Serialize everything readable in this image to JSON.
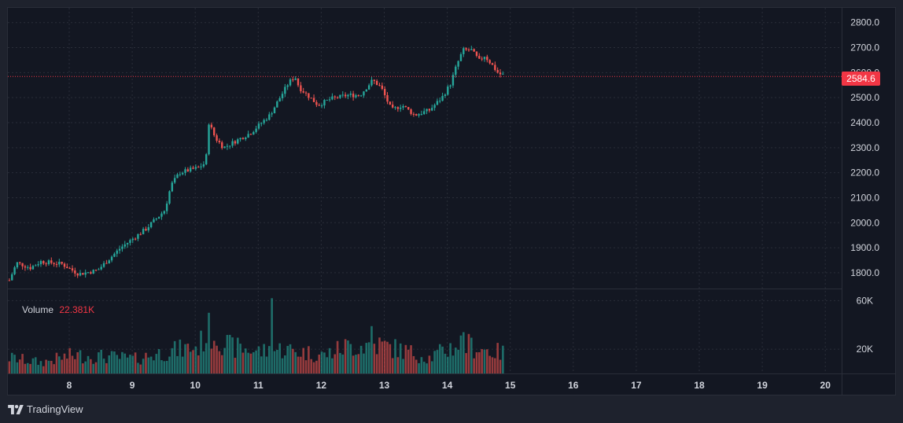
{
  "brand": {
    "name": "TradingView",
    "icon": "tradingview-logo-icon"
  },
  "volume_legend": {
    "label": "Volume",
    "value": "22.381K"
  },
  "last_price": {
    "label": "2584.6",
    "value": 2584.6,
    "color": "#f23645"
  },
  "colors": {
    "up": "#26a69a",
    "down": "#ef5350",
    "background": "#131722",
    "frame": "#1e222d"
  },
  "chart_data": {
    "type": "candlestick",
    "price_axis": {
      "ticks": [
        "1800.0",
        "1900.0",
        "2000.0",
        "2100.0",
        "2200.0",
        "2300.0",
        "2400.0",
        "2500.0",
        "2600.0",
        "2700.0",
        "2800.0"
      ],
      "range": [
        1740,
        2840
      ]
    },
    "volume_axis": {
      "ticks": [
        "20K",
        "60K"
      ],
      "range": [
        0,
        68000
      ]
    },
    "x_axis": {
      "labels": [
        "8",
        "9",
        "10",
        "11",
        "12",
        "13",
        "14",
        "15",
        "16",
        "17",
        "18",
        "19",
        "20"
      ]
    },
    "series": [
      {
        "name": "Volume",
        "type": "volume"
      }
    ],
    "price_keypoints": [
      [
        0,
        1770
      ],
      [
        0.35,
        1840
      ],
      [
        1.0,
        1820
      ],
      [
        1.5,
        1845
      ],
      [
        2.5,
        1835
      ],
      [
        3.3,
        1795
      ],
      [
        4.2,
        1810
      ],
      [
        5.3,
        1900
      ],
      [
        6.5,
        1975
      ],
      [
        7.4,
        2050
      ],
      [
        7.7,
        2150
      ],
      [
        8.1,
        2200
      ],
      [
        9.0,
        2220
      ],
      [
        9.35,
        2240
      ],
      [
        9.5,
        2400
      ],
      [
        9.8,
        2340
      ],
      [
        10.2,
        2300
      ],
      [
        11.5,
        2360
      ],
      [
        12.4,
        2430
      ],
      [
        13.3,
        2560
      ],
      [
        13.6,
        2585
      ],
      [
        13.8,
        2540
      ],
      [
        14.2,
        2510
      ],
      [
        14.7,
        2470
      ],
      [
        15.3,
        2495
      ],
      [
        16.1,
        2510
      ],
      [
        16.7,
        2510
      ],
      [
        17.3,
        2570
      ],
      [
        17.7,
        2540
      ],
      [
        18.2,
        2450
      ],
      [
        18.7,
        2470
      ],
      [
        19.3,
        2430
      ],
      [
        20.0,
        2450
      ],
      [
        20.6,
        2500
      ],
      [
        21.0,
        2555
      ],
      [
        21.3,
        2630
      ],
      [
        21.6,
        2690
      ],
      [
        22.0,
        2690
      ],
      [
        22.4,
        2645
      ],
      [
        22.6,
        2670
      ],
      [
        22.9,
        2640
      ],
      [
        23.3,
        2595
      ],
      [
        23.6,
        2590
      ],
      [
        23.95,
        2585
      ]
    ],
    "volume_keypoints": [
      [
        0,
        13000
      ],
      [
        1.5,
        9000
      ],
      [
        3.0,
        15000
      ],
      [
        4.5,
        14000
      ],
      [
        6.0,
        12000
      ],
      [
        7.5,
        18000
      ],
      [
        9.0,
        22000
      ],
      [
        9.5,
        36000
      ],
      [
        10.5,
        22000
      ],
      [
        12.0,
        18000
      ],
      [
        13.0,
        20000
      ],
      [
        15.0,
        15000
      ],
      [
        16.0,
        22000
      ],
      [
        17.5,
        24000
      ],
      [
        18.5,
        20000
      ],
      [
        20.0,
        13000
      ],
      [
        21.5,
        25000
      ],
      [
        23.0,
        18000
      ],
      [
        24.0,
        16000
      ]
    ],
    "volume_spikes": [
      [
        9.5,
        50000
      ],
      [
        12.5,
        62000
      ],
      [
        17.2,
        39000
      ],
      [
        21.6,
        34000
      ]
    ]
  }
}
